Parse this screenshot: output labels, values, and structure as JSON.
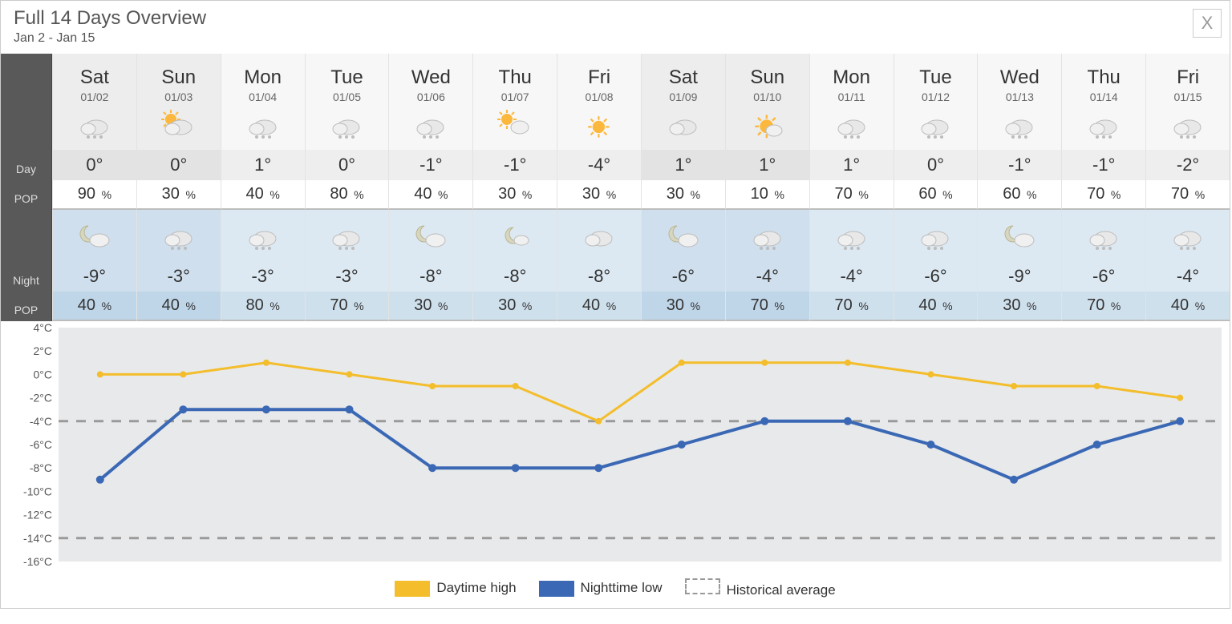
{
  "header": {
    "title": "Full 14 Days Overview",
    "subtitle": "Jan 2 - Jan 15",
    "close_label": "X"
  },
  "row_labels": {
    "day": "Day",
    "pop": "POP",
    "night": "Night",
    "pop2": "POP"
  },
  "days": [
    {
      "dow": "Sat",
      "date": "01/02",
      "day_icon": "snow",
      "day_temp": "0°",
      "day_pop": "90",
      "night_icon": "moon-cloud",
      "night_temp": "-9°",
      "night_pop": "40",
      "weekend": true
    },
    {
      "dow": "Sun",
      "date": "01/03",
      "day_icon": "sun-cloud",
      "day_temp": "0°",
      "day_pop": "30",
      "night_icon": "cloud-snow",
      "night_temp": "-3°",
      "night_pop": "40",
      "weekend": true
    },
    {
      "dow": "Mon",
      "date": "01/04",
      "day_icon": "snow",
      "day_temp": "1°",
      "day_pop": "40",
      "night_icon": "cloud-snow",
      "night_temp": "-3°",
      "night_pop": "80",
      "weekend": false
    },
    {
      "dow": "Tue",
      "date": "01/05",
      "day_icon": "snow",
      "day_temp": "0°",
      "day_pop": "80",
      "night_icon": "cloud-snow",
      "night_temp": "-3°",
      "night_pop": "70",
      "weekend": false
    },
    {
      "dow": "Wed",
      "date": "01/06",
      "day_icon": "snow",
      "day_temp": "-1°",
      "day_pop": "40",
      "night_icon": "moon-cloud",
      "night_temp": "-8°",
      "night_pop": "30",
      "weekend": false
    },
    {
      "dow": "Thu",
      "date": "01/07",
      "day_icon": "sun-moon",
      "day_temp": "-1°",
      "day_pop": "30",
      "night_icon": "moon-small",
      "night_temp": "-8°",
      "night_pop": "30",
      "weekend": false
    },
    {
      "dow": "Fri",
      "date": "01/08",
      "day_icon": "sun",
      "day_temp": "-4°",
      "day_pop": "30",
      "night_icon": "cloud",
      "night_temp": "-8°",
      "night_pop": "40",
      "weekend": false
    },
    {
      "dow": "Sat",
      "date": "01/09",
      "day_icon": "cloud",
      "day_temp": "1°",
      "day_pop": "30",
      "night_icon": "moon-cloud",
      "night_temp": "-6°",
      "night_pop": "30",
      "weekend": true
    },
    {
      "dow": "Sun",
      "date": "01/10",
      "day_icon": "sun-big",
      "day_temp": "1°",
      "day_pop": "10",
      "night_icon": "cloud-snow",
      "night_temp": "-4°",
      "night_pop": "70",
      "weekend": true
    },
    {
      "dow": "Mon",
      "date": "01/11",
      "day_icon": "snow",
      "day_temp": "1°",
      "day_pop": "70",
      "night_icon": "cloud-snow",
      "night_temp": "-4°",
      "night_pop": "70",
      "weekend": false
    },
    {
      "dow": "Tue",
      "date": "01/12",
      "day_icon": "snow",
      "day_temp": "0°",
      "day_pop": "60",
      "night_icon": "cloud-snow",
      "night_temp": "-6°",
      "night_pop": "40",
      "weekend": false
    },
    {
      "dow": "Wed",
      "date": "01/13",
      "day_icon": "snow",
      "day_temp": "-1°",
      "day_pop": "60",
      "night_icon": "moon-cloud",
      "night_temp": "-9°",
      "night_pop": "30",
      "weekend": false
    },
    {
      "dow": "Thu",
      "date": "01/14",
      "day_icon": "snow",
      "day_temp": "-1°",
      "day_pop": "70",
      "night_icon": "cloud-snow",
      "night_temp": "-6°",
      "night_pop": "70",
      "weekend": false
    },
    {
      "dow": "Fri",
      "date": "01/15",
      "day_icon": "snow",
      "day_temp": "-2°",
      "day_pop": "70",
      "night_icon": "cloud-snow",
      "night_temp": "-4°",
      "night_pop": "40",
      "weekend": false
    }
  ],
  "chart": {
    "type": "line",
    "background_color": "#e8e9ea",
    "grid_color": "#9a9a9a",
    "axis_text_color": "#555555",
    "axis_fontsize": 14,
    "ylim": [
      -16,
      4
    ],
    "ytick_step": 2,
    "yticks": [
      "4°C",
      "2°C",
      "0°C",
      "-2°C",
      "-4°C",
      "-6°C",
      "-8°C",
      "-10°C",
      "-12°C",
      "-14°C",
      "-16°C"
    ],
    "historical_lines": [
      -4,
      -14
    ],
    "series": [
      {
        "name": "Daytime high",
        "color": "#f3bd2b",
        "values": [
          0,
          0,
          1,
          0,
          -1,
          -1,
          -4,
          1,
          1,
          1,
          0,
          -1,
          -1,
          -2
        ],
        "marker_radius": 4,
        "line_width": 3
      },
      {
        "name": "Nighttime low",
        "color": "#3a68b5",
        "values": [
          -9,
          -3,
          -3,
          -3,
          -8,
          -8,
          -8,
          -6,
          -4,
          -4,
          -6,
          -9,
          -6,
          -4
        ],
        "marker_radius": 5,
        "line_width": 4
      }
    ]
  },
  "legend": {
    "high": "Daytime high",
    "low": "Nighttime low",
    "hist": "Historical average"
  }
}
